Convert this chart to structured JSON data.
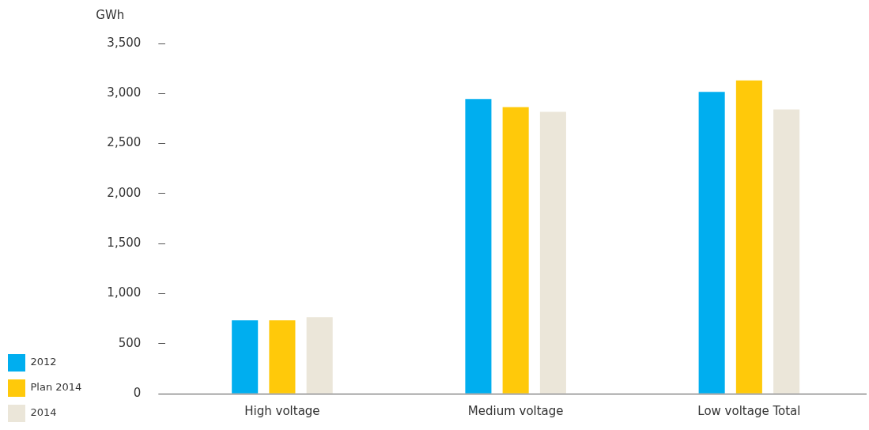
{
  "chart_data": {
    "type": "bar",
    "ylabel": "GWh",
    "categories": [
      "High voltage",
      "Medium voltage",
      "Low voltage Total"
    ],
    "series": [
      {
        "name": "2012",
        "color": "#00aeef",
        "values": [
          732,
          2944,
          3017
        ]
      },
      {
        "name": "Plan 2014",
        "color": "#ffc90a",
        "values": [
          732,
          2864,
          3130
        ]
      },
      {
        "name": "2014",
        "color": "#ebe6d9",
        "values": [
          764,
          2816,
          2840
        ]
      }
    ],
    "ylim": [
      0,
      3500
    ],
    "yticks": [
      0,
      500,
      {
        "value": 1000,
        "label": "1,000"
      },
      {
        "value": 1500,
        "label": "1,500"
      },
      {
        "value": 2000,
        "label": "2,000"
      },
      {
        "value": 2500,
        "label": "2,500"
      },
      {
        "value": 3000,
        "label": "3,000"
      },
      {
        "value": 3500,
        "label": "3,500"
      }
    ],
    "grid": false,
    "legend": "bottom left"
  }
}
